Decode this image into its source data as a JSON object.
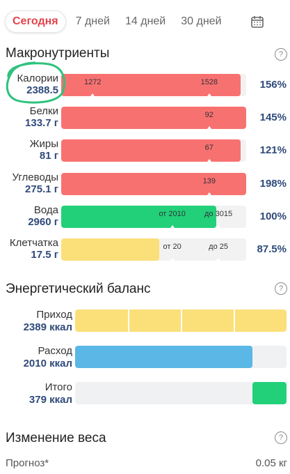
{
  "tabs": [
    {
      "label": "Сегодня",
      "active": true
    },
    {
      "label": "7 дней",
      "active": false
    },
    {
      "label": "14 дней",
      "active": false
    },
    {
      "label": "30 дней",
      "active": false
    }
  ],
  "macros": {
    "title": "Макронутриенты",
    "help": "?",
    "rows": [
      {
        "name": "Калории",
        "value": "2388.5",
        "fill": 0.97,
        "color": "#f87171",
        "marks": [
          {
            "label": "1272",
            "pos": 0.17
          },
          {
            "label": "1528",
            "pos": 0.8
          }
        ],
        "percent": "156%"
      },
      {
        "name": "Белки",
        "value": "133.7 г",
        "fill": 1.0,
        "color": "#f87171",
        "marks": [
          {
            "label": "92",
            "pos": 0.8
          }
        ],
        "percent": "145%"
      },
      {
        "name": "Жиры",
        "value": "81 г",
        "fill": 0.97,
        "color": "#f87171",
        "marks": [
          {
            "label": "67",
            "pos": 0.8
          }
        ],
        "percent": "121%"
      },
      {
        "name": "Углеводы",
        "value": "275.1 г",
        "fill": 1.0,
        "color": "#f87171",
        "marks": [
          {
            "label": "139",
            "pos": 0.8
          }
        ],
        "percent": "198%"
      },
      {
        "name": "Вода",
        "value": "2960 г",
        "fill": 0.84,
        "color": "#22d07a",
        "marks": [
          {
            "label": "от 2010",
            "pos": 0.6
          },
          {
            "label": "до 3015",
            "pos": 0.85
          }
        ],
        "percent": "100%"
      },
      {
        "name": "Клетчатка",
        "value": "17.5 г",
        "fill": 0.53,
        "color": "#fbe07a",
        "marks": [
          {
            "label": "от 20",
            "pos": 0.6
          },
          {
            "label": "до 25",
            "pos": 0.85
          }
        ],
        "percent": "87.5%"
      }
    ]
  },
  "energy": {
    "title": "Энергетический баланс",
    "help": "?",
    "rows": [
      {
        "name": "Приход",
        "value": "2389 ккал",
        "fill": 1.0,
        "color": "#fbe07a",
        "segments": 4
      },
      {
        "name": "Расход",
        "value": "2010 ккал",
        "fill": 0.84,
        "color": "#5ab7e6",
        "segments": 1
      },
      {
        "name": "Итого",
        "value": "379 ккал",
        "fill": 0.16,
        "color": "#22d07a",
        "segments": 1,
        "align": "right"
      }
    ]
  },
  "weight": {
    "title": "Изменение веса",
    "help": "?",
    "forecast_label": "Прогноз*",
    "forecast_value": "0.05 кг"
  }
}
